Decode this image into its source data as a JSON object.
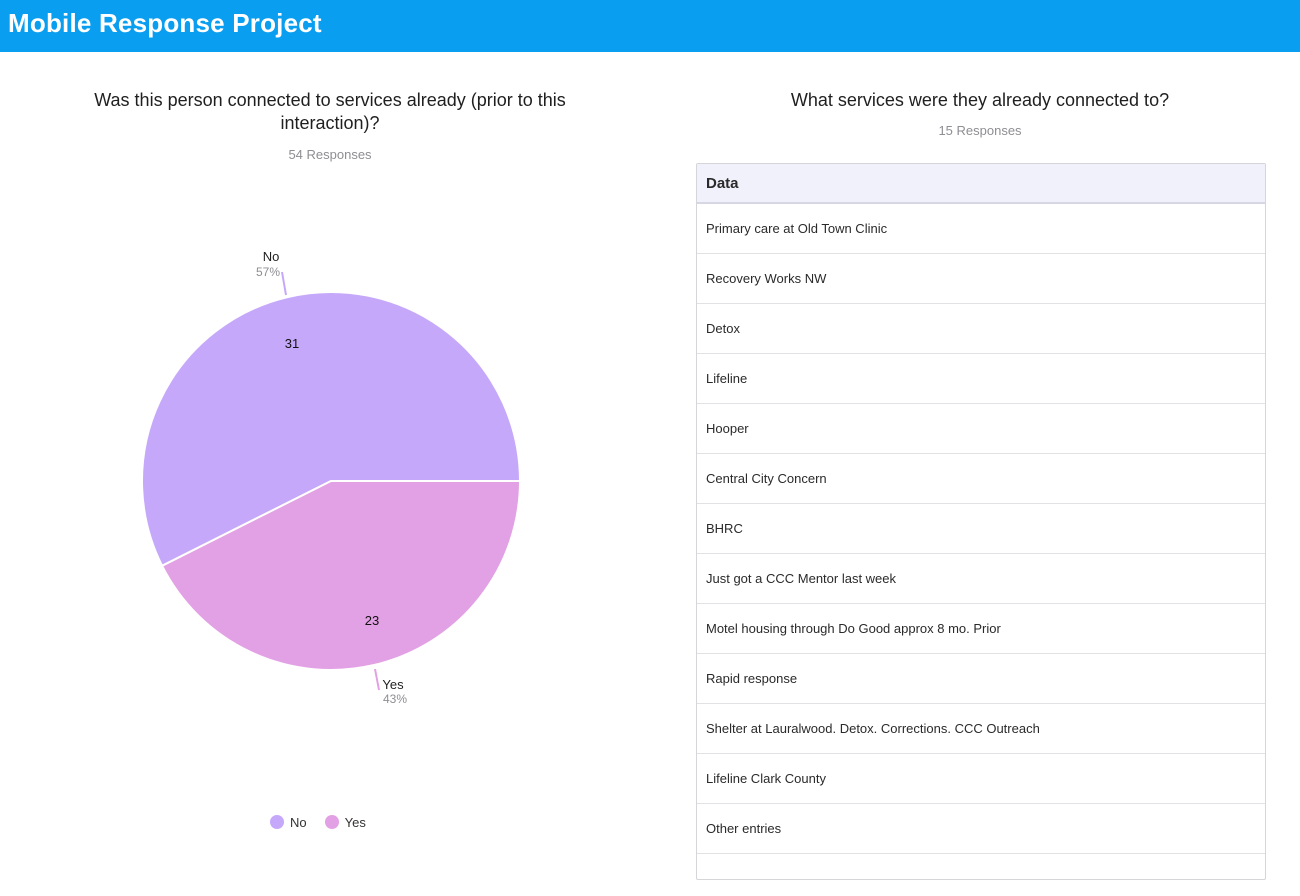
{
  "header": {
    "title": "Mobile Response Project"
  },
  "left_panel": {
    "title": "Was this person connected to services already (prior to this interaction)?",
    "subtitle": "54 Responses"
  },
  "right_panel": {
    "title": "What services were they already connected to?",
    "subtitle": "15 Responses",
    "table": {
      "column_header": "Data",
      "rows": [
        "Primary care at Old Town Clinic",
        "Recovery Works NW",
        "Detox",
        "Lifeline",
        "Hooper",
        "Central City Concern",
        "BHRC",
        "Just got a CCC Mentor last week",
        "Motel housing through Do Good approx 8 mo. Prior",
        "Rapid response",
        "Shelter at Lauralwood. Detox. Corrections. CCC Outreach",
        "Lifeline Clark County",
        "Other entries",
        ""
      ]
    }
  },
  "chart_data": {
    "type": "pie",
    "title": "Was this person connected to services already (prior to this interaction)?",
    "subtitle": "54 Responses",
    "categories": [
      "No",
      "Yes"
    ],
    "values": [
      31,
      23
    ],
    "percent_labels": [
      "57%",
      "43%"
    ],
    "colors": [
      "#c6a8fa",
      "#e2a1e4"
    ],
    "legend": {
      "position": "bottom",
      "items": [
        "No",
        "Yes"
      ]
    }
  }
}
